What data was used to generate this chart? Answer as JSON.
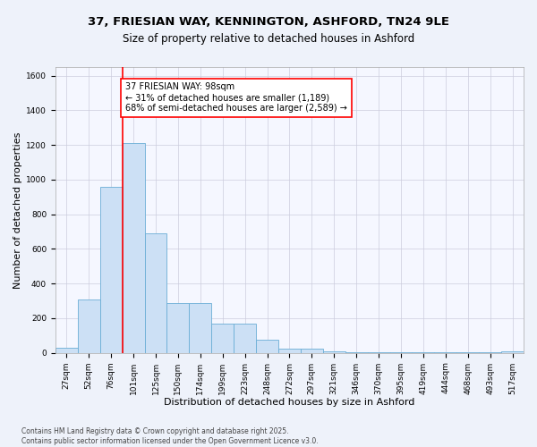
{
  "title_line1": "37, FRIESIAN WAY, KENNINGTON, ASHFORD, TN24 9LE",
  "title_line2": "Size of property relative to detached houses in Ashford",
  "xlabel": "Distribution of detached houses by size in Ashford",
  "ylabel": "Number of detached properties",
  "categories": [
    "27sqm",
    "52sqm",
    "76sqm",
    "101sqm",
    "125sqm",
    "150sqm",
    "174sqm",
    "199sqm",
    "223sqm",
    "248sqm",
    "272sqm",
    "297sqm",
    "321sqm",
    "346sqm",
    "370sqm",
    "395sqm",
    "419sqm",
    "444sqm",
    "468sqm",
    "493sqm",
    "517sqm"
  ],
  "values": [
    30,
    310,
    960,
    1210,
    690,
    290,
    290,
    170,
    170,
    75,
    25,
    25,
    10,
    5,
    5,
    5,
    5,
    3,
    2,
    3,
    10
  ],
  "bar_color": "#cce0f5",
  "bar_edge_color": "#6aaed6",
  "vline_color": "red",
  "annotation_text": "37 FRIESIAN WAY: 98sqm\n← 31% of detached houses are smaller (1,189)\n68% of semi-detached houses are larger (2,589) →",
  "annotation_box_color": "white",
  "annotation_box_edge_color": "red",
  "ylim": [
    0,
    1650
  ],
  "yticks": [
    0,
    200,
    400,
    600,
    800,
    1000,
    1200,
    1400,
    1600
  ],
  "bg_color": "#eef2fa",
  "plot_bg_color": "#f5f7ff",
  "grid_color": "#ccccdd",
  "footer_line1": "Contains HM Land Registry data © Crown copyright and database right 2025.",
  "footer_line2": "Contains public sector information licensed under the Open Government Licence v3.0.",
  "title_fontsize": 9.5,
  "subtitle_fontsize": 8.5,
  "axis_label_fontsize": 8,
  "tick_fontsize": 6.5,
  "annotation_fontsize": 7,
  "footer_fontsize": 5.5
}
